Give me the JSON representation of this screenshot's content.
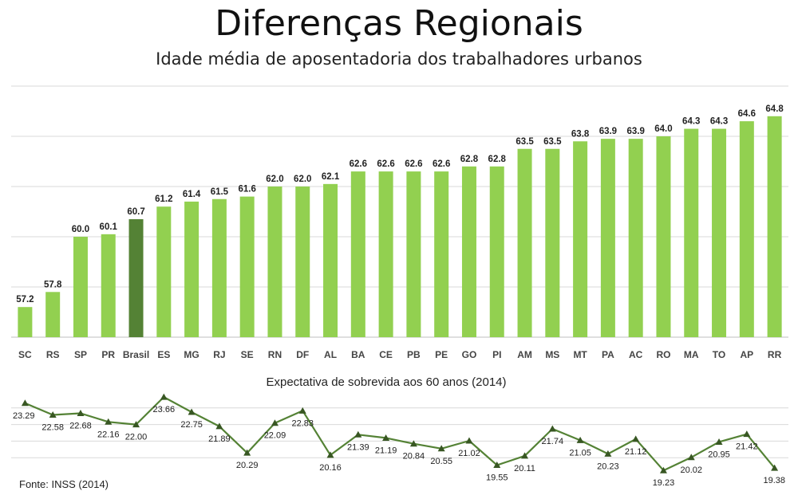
{
  "header": {
    "title": "Diferenças Regionais",
    "subtitle": "Idade média de aposentadoria dos trabalhadores urbanos"
  },
  "footer": {
    "source": "Fonte: INSS (2014)"
  },
  "colors": {
    "bar": "#92d050",
    "highlight": "#548235",
    "line": "#548235",
    "marker": "#385723",
    "grid": "#d9d9d9"
  },
  "chart_data": [
    {
      "type": "bar",
      "title": "Idade média de aposentadoria dos trabalhadores urbanos",
      "categories": [
        "SC",
        "RS",
        "SP",
        "PR",
        "Brasil",
        "ES",
        "MG",
        "RJ",
        "SE",
        "RN",
        "DF",
        "AL",
        "BA",
        "CE",
        "PB",
        "PE",
        "GO",
        "PI",
        "AM",
        "MS",
        "MT",
        "PA",
        "AC",
        "RO",
        "MA",
        "TO",
        "AP",
        "RR"
      ],
      "values": [
        57.2,
        57.8,
        60.0,
        60.1,
        60.7,
        61.2,
        61.4,
        61.5,
        61.6,
        62.0,
        62.0,
        62.1,
        62.6,
        62.6,
        62.6,
        62.6,
        62.8,
        62.8,
        63.5,
        63.5,
        63.8,
        63.9,
        63.9,
        64.0,
        64.3,
        64.3,
        64.6,
        64.8
      ],
      "value_labels": [
        "57.2",
        "57.8",
        "60.0",
        "60.1",
        "60.7",
        "61.2",
        "61.4",
        "61.5",
        "61.6",
        "62.0",
        "62.0",
        "62.1",
        "62.6",
        "62.6",
        "62.6",
        "62.6",
        "62.8",
        "62.8",
        "63.5",
        "63.5",
        "63.8",
        "63.9",
        "63.9",
        "64.0",
        "64.3",
        "64.3",
        "64.6",
        "64.8"
      ],
      "highlight_category": "Brasil",
      "ylim": [
        56,
        66
      ],
      "grid": true,
      "xlabel": "",
      "ylabel": ""
    },
    {
      "type": "line",
      "title": "Expectativa de sobrevida aos 60 anos (2014)",
      "categories": [
        "SC",
        "RS",
        "SP",
        "PR",
        "Brasil",
        "ES",
        "MG",
        "RJ",
        "SE",
        "RN",
        "DF",
        "AL",
        "BA",
        "CE",
        "PB",
        "PE",
        "GO",
        "PI",
        "AM",
        "MS",
        "MT",
        "PA",
        "AC",
        "RO",
        "MA",
        "TO",
        "AP",
        "RR"
      ],
      "values": [
        23.29,
        22.58,
        22.68,
        22.16,
        22.0,
        23.66,
        22.75,
        21.89,
        20.29,
        22.09,
        22.83,
        20.16,
        21.39,
        21.19,
        20.84,
        20.55,
        21.02,
        19.55,
        20.11,
        21.74,
        21.05,
        20.23,
        21.12,
        19.23,
        20.02,
        20.95,
        21.42,
        19.38
      ],
      "value_labels": [
        "23.29",
        "22.58",
        "22.68",
        "22.16",
        "22.00",
        "23.66",
        "22.75",
        "21.89",
        "20.29",
        "22.09",
        "22.83",
        "20.16",
        "21.39",
        "21.19",
        "20.84",
        "20.55",
        "21.02",
        "19.55",
        "20.11",
        "21.74",
        "21.05",
        "20.23",
        "21.12",
        "19.23",
        "20.02",
        "20.95",
        "21.42",
        "19.38"
      ],
      "ylim": [
        19,
        24
      ],
      "grid": true,
      "marker": "triangle"
    }
  ]
}
